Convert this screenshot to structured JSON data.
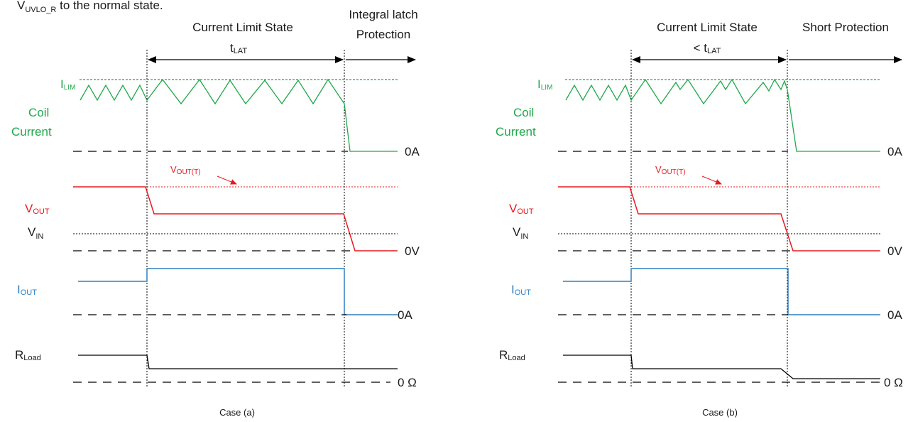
{
  "header_text": {
    "main": "V",
    "sub": "UVLO_R",
    "rest": " to the normal state."
  },
  "colors": {
    "coil": "#1fa84a",
    "vout": "#e8191f",
    "iout": "#2f7fc1",
    "rload": "#000000",
    "text": "#1a1a1a"
  },
  "cases": [
    {
      "caption": "Case (a)",
      "state_label": "Current Limit State",
      "time_label": {
        "prefix": "",
        "main": "t",
        "sub": "LAT"
      },
      "protection_label_lines": [
        "Integral latch",
        "Protection"
      ],
      "ilim_label": {
        "main": "I",
        "sub": "LIM"
      },
      "coil_label_lines": [
        "Coil",
        "Current"
      ],
      "vout_t_label": {
        "main": "V",
        "sub": "OUT(T)"
      },
      "vout_label": {
        "main": "V",
        "sub": "OUT"
      },
      "vin_label": {
        "main": "V",
        "sub": "IN"
      },
      "iout_label": {
        "main": "I",
        "sub": "OUT"
      },
      "rload_label": {
        "main": "R",
        "sub": "Load"
      },
      "zero_coil": "0A",
      "zero_vout": "0V",
      "zero_iout": "0A",
      "zero_rload": "0 Ω"
    },
    {
      "caption": "Case (b)",
      "state_label": "Current Limit State",
      "time_label": {
        "prefix": "< ",
        "main": "t",
        "sub": "LAT"
      },
      "protection_label_lines": [
        "Short Protection"
      ],
      "ilim_label": {
        "main": "I",
        "sub": "LIM"
      },
      "coil_label_lines": [
        "Coil",
        "Current"
      ],
      "vout_t_label": {
        "main": "V",
        "sub": "OUT(T)"
      },
      "vout_label": {
        "main": "V",
        "sub": "OUT"
      },
      "vin_label": {
        "main": "V",
        "sub": "IN"
      },
      "iout_label": {
        "main": "I",
        "sub": "OUT"
      },
      "rload_label": {
        "main": "R",
        "sub": "Load"
      },
      "zero_coil": "0A",
      "zero_vout": "0V",
      "zero_iout": "0A",
      "zero_rload": "0 Ω"
    }
  ]
}
